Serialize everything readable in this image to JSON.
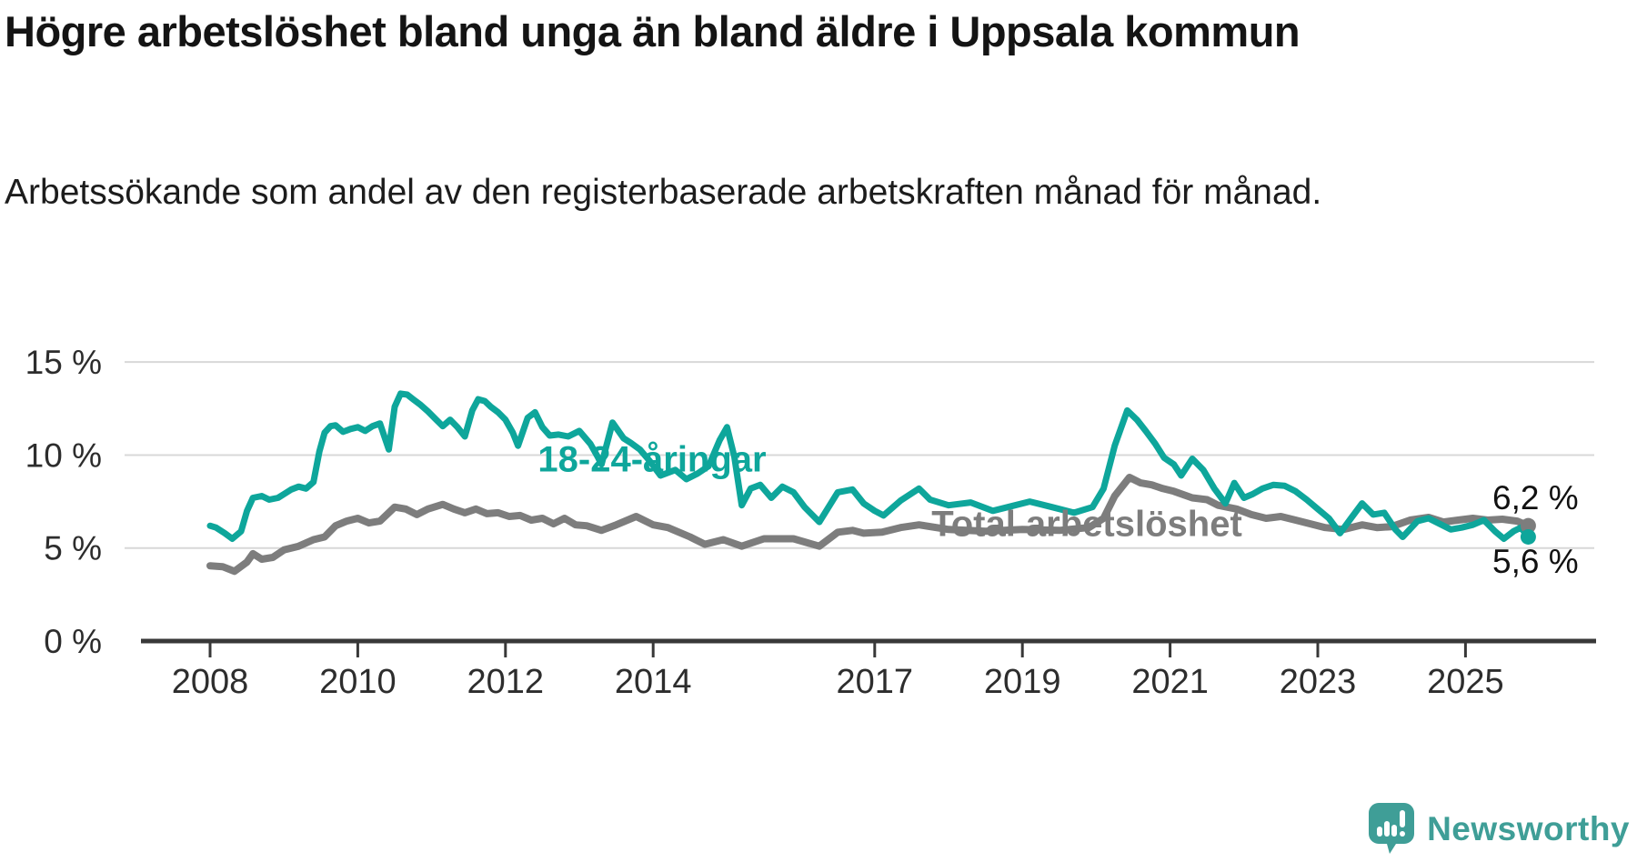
{
  "header": {
    "title": "Högre arbetslöshet bland unga än bland äldre i Uppsala kommun",
    "subtitle": "Arbetssökande som andel av den registerbaserade arbetskraften månad för månad."
  },
  "footer": {
    "brand": "Newsworthy",
    "logo_icon": "bar-chart-speech-bubble"
  },
  "colors": {
    "young_series": "#0ea69b",
    "total_series": "#7d7d7d",
    "gridline": "#d8d8d8",
    "axis": "#383838",
    "tick_label": "#2d2d2d",
    "brand_teal": "#3f9e97"
  },
  "chart_data": {
    "type": "line",
    "title": "Högre arbetslöshet bland unga än bland äldre i Uppsala kommun",
    "subtitle": "Arbetssökande som andel av den registerbaserade arbetskraften månad för månad.",
    "unit": "percent",
    "grid": "horizontal-only",
    "legend_position": "inline-labels-on-lines",
    "y_axis": {
      "range": [
        0,
        15.5
      ],
      "ticks": [
        {
          "value": 0,
          "label": "0 %"
        },
        {
          "value": 5,
          "label": "5 %"
        },
        {
          "value": 10,
          "label": "10 %"
        },
        {
          "value": 15,
          "label": "15 %"
        }
      ]
    },
    "x_axis": {
      "range_years": [
        2008,
        2026.7
      ],
      "ticks": [
        2008,
        2010,
        2012,
        2014,
        2017,
        2019,
        2021,
        2023,
        2025
      ]
    },
    "series": [
      {
        "name": "18-24-åringar",
        "color": "#0ea69b",
        "end_label": "5,6 %",
        "end_value": 5.6,
        "points": [
          [
            2008.0,
            6.2
          ],
          [
            2008.08,
            6.1
          ],
          [
            2008.2,
            5.8
          ],
          [
            2008.3,
            5.5
          ],
          [
            2008.42,
            5.9
          ],
          [
            2008.5,
            7.0
          ],
          [
            2008.58,
            7.7
          ],
          [
            2008.7,
            7.8
          ],
          [
            2008.8,
            7.6
          ],
          [
            2008.92,
            7.7
          ],
          [
            2009.0,
            7.9
          ],
          [
            2009.1,
            8.15
          ],
          [
            2009.2,
            8.3
          ],
          [
            2009.3,
            8.2
          ],
          [
            2009.4,
            8.55
          ],
          [
            2009.48,
            10.2
          ],
          [
            2009.55,
            11.2
          ],
          [
            2009.63,
            11.55
          ],
          [
            2009.7,
            11.6
          ],
          [
            2009.8,
            11.25
          ],
          [
            2009.9,
            11.4
          ],
          [
            2010.0,
            11.5
          ],
          [
            2010.1,
            11.3
          ],
          [
            2010.2,
            11.55
          ],
          [
            2010.3,
            11.7
          ],
          [
            2010.42,
            10.3
          ],
          [
            2010.5,
            12.6
          ],
          [
            2010.58,
            13.3
          ],
          [
            2010.67,
            13.25
          ],
          [
            2010.75,
            13.0
          ],
          [
            2010.85,
            12.7
          ],
          [
            2010.95,
            12.35
          ],
          [
            2011.05,
            11.95
          ],
          [
            2011.15,
            11.55
          ],
          [
            2011.25,
            11.9
          ],
          [
            2011.35,
            11.5
          ],
          [
            2011.45,
            11.0
          ],
          [
            2011.55,
            12.4
          ],
          [
            2011.63,
            13.0
          ],
          [
            2011.72,
            12.9
          ],
          [
            2011.8,
            12.6
          ],
          [
            2011.9,
            12.3
          ],
          [
            2012.0,
            11.9
          ],
          [
            2012.1,
            11.2
          ],
          [
            2012.17,
            10.5
          ],
          [
            2012.3,
            12.0
          ],
          [
            2012.4,
            12.3
          ],
          [
            2012.5,
            11.5
          ],
          [
            2012.6,
            11.05
          ],
          [
            2012.72,
            11.1
          ],
          [
            2012.85,
            11.0
          ],
          [
            2013.0,
            11.3
          ],
          [
            2013.15,
            10.6
          ],
          [
            2013.25,
            9.9
          ],
          [
            2013.3,
            9.5
          ],
          [
            2013.45,
            11.75
          ],
          [
            2013.6,
            10.9
          ],
          [
            2013.7,
            10.65
          ],
          [
            2013.82,
            10.3
          ],
          [
            2013.95,
            9.7
          ],
          [
            2014.1,
            8.9
          ],
          [
            2014.3,
            9.2
          ],
          [
            2014.45,
            8.7
          ],
          [
            2014.6,
            9.0
          ],
          [
            2014.75,
            9.4
          ],
          [
            2014.9,
            10.8
          ],
          [
            2015.0,
            11.5
          ],
          [
            2015.1,
            9.9
          ],
          [
            2015.2,
            7.3
          ],
          [
            2015.32,
            8.2
          ],
          [
            2015.45,
            8.4
          ],
          [
            2015.6,
            7.7
          ],
          [
            2015.75,
            8.3
          ],
          [
            2015.9,
            8.0
          ],
          [
            2016.05,
            7.2
          ],
          [
            2016.25,
            6.4
          ],
          [
            2016.5,
            8.0
          ],
          [
            2016.7,
            8.15
          ],
          [
            2016.85,
            7.4
          ],
          [
            2017.0,
            7.0
          ],
          [
            2017.12,
            6.75
          ],
          [
            2017.35,
            7.55
          ],
          [
            2017.6,
            8.2
          ],
          [
            2017.75,
            7.6
          ],
          [
            2018.0,
            7.3
          ],
          [
            2018.3,
            7.45
          ],
          [
            2018.6,
            7.0
          ],
          [
            2018.9,
            7.3
          ],
          [
            2019.1,
            7.5
          ],
          [
            2019.4,
            7.2
          ],
          [
            2019.7,
            6.9
          ],
          [
            2019.95,
            7.2
          ],
          [
            2020.1,
            8.2
          ],
          [
            2020.25,
            10.5
          ],
          [
            2020.42,
            12.4
          ],
          [
            2020.55,
            11.9
          ],
          [
            2020.67,
            11.3
          ],
          [
            2020.8,
            10.6
          ],
          [
            2020.92,
            9.85
          ],
          [
            2021.05,
            9.5
          ],
          [
            2021.15,
            8.9
          ],
          [
            2021.3,
            9.8
          ],
          [
            2021.45,
            9.2
          ],
          [
            2021.6,
            8.2
          ],
          [
            2021.75,
            7.4
          ],
          [
            2021.87,
            8.5
          ],
          [
            2022.0,
            7.7
          ],
          [
            2022.12,
            7.9
          ],
          [
            2022.25,
            8.2
          ],
          [
            2022.4,
            8.4
          ],
          [
            2022.55,
            8.35
          ],
          [
            2022.7,
            8.05
          ],
          [
            2022.85,
            7.6
          ],
          [
            2023.0,
            7.1
          ],
          [
            2023.15,
            6.6
          ],
          [
            2023.3,
            5.8
          ],
          [
            2023.45,
            6.6
          ],
          [
            2023.6,
            7.4
          ],
          [
            2023.75,
            6.8
          ],
          [
            2023.9,
            6.9
          ],
          [
            2024.05,
            6.0
          ],
          [
            2024.15,
            5.6
          ],
          [
            2024.35,
            6.45
          ],
          [
            2024.5,
            6.6
          ],
          [
            2024.65,
            6.3
          ],
          [
            2024.8,
            6.0
          ],
          [
            2024.95,
            6.1
          ],
          [
            2025.1,
            6.25
          ],
          [
            2025.25,
            6.5
          ],
          [
            2025.4,
            5.9
          ],
          [
            2025.52,
            5.5
          ],
          [
            2025.65,
            5.9
          ],
          [
            2025.75,
            6.1
          ],
          [
            2025.85,
            5.6
          ]
        ]
      },
      {
        "name": "Total arbetslöshet",
        "color": "#7d7d7d",
        "end_label": "6,2 %",
        "end_value": 6.2,
        "points": [
          [
            2008.0,
            4.05
          ],
          [
            2008.17,
            4.0
          ],
          [
            2008.33,
            3.75
          ],
          [
            2008.5,
            4.25
          ],
          [
            2008.58,
            4.7
          ],
          [
            2008.7,
            4.4
          ],
          [
            2008.85,
            4.5
          ],
          [
            2009.0,
            4.9
          ],
          [
            2009.2,
            5.1
          ],
          [
            2009.4,
            5.45
          ],
          [
            2009.55,
            5.6
          ],
          [
            2009.7,
            6.2
          ],
          [
            2009.85,
            6.45
          ],
          [
            2010.0,
            6.6
          ],
          [
            2010.15,
            6.35
          ],
          [
            2010.3,
            6.45
          ],
          [
            2010.5,
            7.2
          ],
          [
            2010.65,
            7.1
          ],
          [
            2010.8,
            6.8
          ],
          [
            2010.95,
            7.1
          ],
          [
            2011.15,
            7.35
          ],
          [
            2011.3,
            7.1
          ],
          [
            2011.45,
            6.9
          ],
          [
            2011.6,
            7.1
          ],
          [
            2011.75,
            6.85
          ],
          [
            2011.9,
            6.9
          ],
          [
            2012.05,
            6.7
          ],
          [
            2012.2,
            6.75
          ],
          [
            2012.35,
            6.5
          ],
          [
            2012.5,
            6.6
          ],
          [
            2012.65,
            6.3
          ],
          [
            2012.8,
            6.6
          ],
          [
            2012.95,
            6.25
          ],
          [
            2013.1,
            6.2
          ],
          [
            2013.3,
            5.95
          ],
          [
            2013.5,
            6.25
          ],
          [
            2013.77,
            6.7
          ],
          [
            2014.0,
            6.25
          ],
          [
            2014.2,
            6.1
          ],
          [
            2014.5,
            5.6
          ],
          [
            2014.7,
            5.2
          ],
          [
            2014.95,
            5.45
          ],
          [
            2015.2,
            5.1
          ],
          [
            2015.5,
            5.5
          ],
          [
            2015.9,
            5.5
          ],
          [
            2016.25,
            5.1
          ],
          [
            2016.5,
            5.85
          ],
          [
            2016.7,
            5.95
          ],
          [
            2016.85,
            5.8
          ],
          [
            2017.1,
            5.85
          ],
          [
            2017.35,
            6.1
          ],
          [
            2017.6,
            6.25
          ],
          [
            2018.0,
            6.0
          ],
          [
            2018.5,
            5.9
          ],
          [
            2019.0,
            6.0
          ],
          [
            2019.5,
            5.95
          ],
          [
            2019.9,
            6.1
          ],
          [
            2020.1,
            6.6
          ],
          [
            2020.25,
            7.8
          ],
          [
            2020.45,
            8.8
          ],
          [
            2020.6,
            8.5
          ],
          [
            2020.75,
            8.4
          ],
          [
            2020.9,
            8.2
          ],
          [
            2021.05,
            8.05
          ],
          [
            2021.3,
            7.7
          ],
          [
            2021.5,
            7.6
          ],
          [
            2021.65,
            7.3
          ],
          [
            2021.9,
            7.1
          ],
          [
            2022.1,
            6.8
          ],
          [
            2022.3,
            6.6
          ],
          [
            2022.5,
            6.7
          ],
          [
            2022.7,
            6.5
          ],
          [
            2022.9,
            6.3
          ],
          [
            2023.1,
            6.1
          ],
          [
            2023.35,
            6.0
          ],
          [
            2023.6,
            6.25
          ],
          [
            2023.8,
            6.1
          ],
          [
            2024.0,
            6.15
          ],
          [
            2024.25,
            6.5
          ],
          [
            2024.5,
            6.65
          ],
          [
            2024.7,
            6.4
          ],
          [
            2024.9,
            6.5
          ],
          [
            2025.1,
            6.6
          ],
          [
            2025.3,
            6.5
          ],
          [
            2025.5,
            6.55
          ],
          [
            2025.7,
            6.45
          ],
          [
            2025.85,
            6.2
          ]
        ]
      }
    ]
  }
}
